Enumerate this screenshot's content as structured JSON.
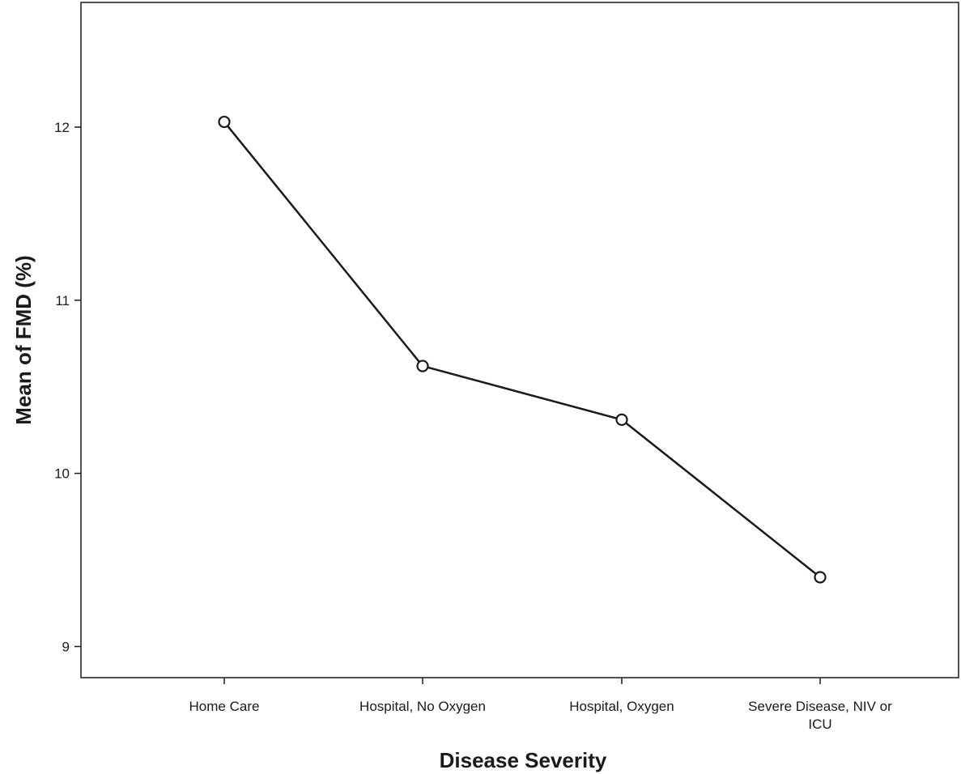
{
  "chart_data": {
    "type": "line",
    "xlabel": "Disease Severity",
    "ylabel": "Mean of FMD (%)",
    "categories": [
      [
        "Home Care"
      ],
      [
        "Hospital, No Oxygen"
      ],
      [
        "Hospital, Oxygen"
      ],
      [
        "Severe Disease, NIV or",
        "ICU"
      ]
    ],
    "values": [
      12.03,
      10.62,
      10.31,
      9.4
    ],
    "y_ticks": [
      9,
      10,
      11,
      12
    ],
    "ylim": [
      8.82,
      12.72
    ],
    "grid": false,
    "legend": "none",
    "marker": "open-circle",
    "line_color": "#1a1a1a"
  }
}
